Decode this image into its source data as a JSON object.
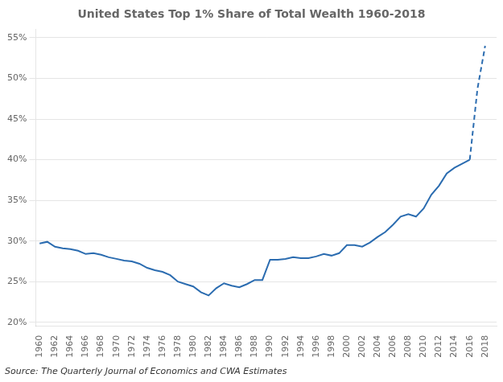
{
  "chart_data": {
    "type": "line",
    "title": "United States Top 1% Share of Total Wealth 1960-2018",
    "annotation": "Source: The Quarterly Journal of Economics and CWA Estimates",
    "series": [
      {
        "color": "#2b6cb0",
        "line_style": "solid",
        "x": [
          1960,
          1961,
          1962,
          1963,
          1964,
          1965,
          1966,
          1967,
          1968,
          1969,
          1970,
          1971,
          1972,
          1973,
          1974,
          1975,
          1976,
          1977,
          1978,
          1979,
          1980,
          1981,
          1982,
          1983,
          1984,
          1985,
          1986,
          1987,
          1988,
          1989,
          1990,
          1991,
          1992,
          1993,
          1994,
          1995,
          1996,
          1997,
          1998,
          1999,
          2000,
          2001,
          2002,
          2003,
          2004,
          2005,
          2006,
          2007,
          2008,
          2009,
          2010,
          2011,
          2012,
          2013,
          2014,
          2015,
          2016
        ],
        "values": [
          0.297,
          0.299,
          0.293,
          0.291,
          0.29,
          0.288,
          0.284,
          0.285,
          0.283,
          0.28,
          0.278,
          0.276,
          0.275,
          0.272,
          0.267,
          0.264,
          0.262,
          0.258,
          0.25,
          0.247,
          0.244,
          0.237,
          0.233,
          0.242,
          0.248,
          0.245,
          0.243,
          0.247,
          0.252,
          0.252,
          0.277,
          0.277,
          0.278,
          0.28,
          0.279,
          0.279,
          0.281,
          0.284,
          0.282,
          0.285,
          0.295,
          0.295,
          0.293,
          0.298,
          0.305,
          0.311,
          0.32,
          0.33,
          0.333,
          0.33,
          0.34,
          0.357,
          0.368,
          0.383,
          0.39,
          0.395,
          0.4
        ]
      },
      {
        "color": "#2b6cb0",
        "line_style": "dashed",
        "x": [
          2016,
          2017,
          2018
        ],
        "values": [
          0.4,
          0.487,
          0.54
        ]
      }
    ],
    "xlim": [
      1959.5,
      2019.5
    ],
    "xticks": [
      1960,
      1962,
      1964,
      1966,
      1968,
      1970,
      1972,
      1974,
      1976,
      1978,
      1980,
      1982,
      1984,
      1986,
      1988,
      1990,
      1992,
      1994,
      1996,
      1998,
      2000,
      2002,
      2004,
      2006,
      2008,
      2010,
      2012,
      2014,
      2016,
      2018
    ],
    "ylim": [
      0.195,
      0.56
    ],
    "yticks": [
      {
        "value": 0.2,
        "label": "20%"
      },
      {
        "value": 0.25,
        "label": "25%"
      },
      {
        "value": 0.3,
        "label": "30%"
      },
      {
        "value": 0.35,
        "label": "35%"
      },
      {
        "value": 0.4,
        "label": "40%"
      },
      {
        "value": 0.45,
        "label": "45%"
      },
      {
        "value": 0.5,
        "label": "50%"
      },
      {
        "value": 0.55,
        "label": "55%"
      }
    ],
    "grid": "y"
  }
}
